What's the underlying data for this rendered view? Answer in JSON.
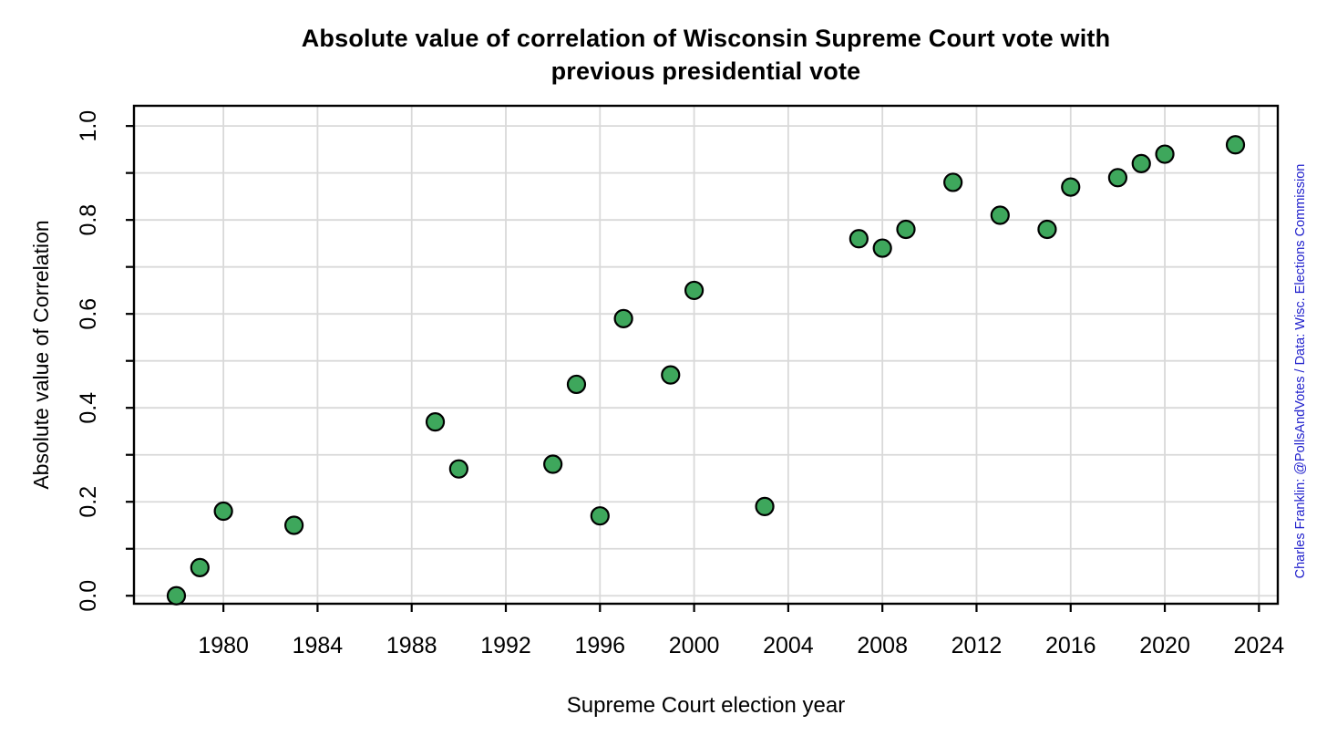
{
  "header": {
    "title_line1": "Absolute value of correlation of Wisconsin Supreme Court vote with",
    "title_line2": "previous presidential vote"
  },
  "chart_data": {
    "type": "scatter",
    "title": "Absolute value of correlation of Wisconsin Supreme Court vote with previous presidential vote",
    "xlabel": "Supreme Court election year",
    "ylabel": "Absolute value of Correlation",
    "credit": "Charles Franklin: @PollsAndVotes / Data: Wisc. Elections Commission",
    "grid": true,
    "legend_position": "none",
    "xlim": [
      1976.2,
      2024.8
    ],
    "ylim": [
      -0.017,
      1.043
    ],
    "x_ticks": [
      1980,
      1984,
      1988,
      1992,
      1996,
      2000,
      2004,
      2008,
      2012,
      2016,
      2020,
      2024
    ],
    "y_gridlines": [
      0.0,
      0.1,
      0.2,
      0.3,
      0.4,
      0.5,
      0.6,
      0.7,
      0.8,
      0.9,
      1.0
    ],
    "y_ticks_labeled": [
      {
        "value": 0.0,
        "label": "0.0"
      },
      {
        "value": 0.2,
        "label": "0.2"
      },
      {
        "value": 0.4,
        "label": "0.4"
      },
      {
        "value": 0.6,
        "label": "0.6"
      },
      {
        "value": 0.8,
        "label": "0.8"
      },
      {
        "value": 1.0,
        "label": "1.0"
      }
    ],
    "points": [
      {
        "year": 1978,
        "value": 0.0
      },
      {
        "year": 1979,
        "value": 0.06
      },
      {
        "year": 1980,
        "value": 0.18
      },
      {
        "year": 1983,
        "value": 0.15
      },
      {
        "year": 1989,
        "value": 0.37
      },
      {
        "year": 1990,
        "value": 0.27
      },
      {
        "year": 1994,
        "value": 0.28
      },
      {
        "year": 1995,
        "value": 0.45
      },
      {
        "year": 1996,
        "value": 0.17
      },
      {
        "year": 1997,
        "value": 0.59
      },
      {
        "year": 1999,
        "value": 0.47
      },
      {
        "year": 2000,
        "value": 0.65
      },
      {
        "year": 2003,
        "value": 0.19
      },
      {
        "year": 2007,
        "value": 0.76
      },
      {
        "year": 2008,
        "value": 0.74
      },
      {
        "year": 2009,
        "value": 0.78
      },
      {
        "year": 2011,
        "value": 0.88
      },
      {
        "year": 2013,
        "value": 0.81
      },
      {
        "year": 2015,
        "value": 0.78
      },
      {
        "year": 2016,
        "value": 0.87
      },
      {
        "year": 2018,
        "value": 0.89
      },
      {
        "year": 2019,
        "value": 0.92
      },
      {
        "year": 2020,
        "value": 0.94
      },
      {
        "year": 2023,
        "value": 0.96
      }
    ],
    "colors": {
      "point_fill": "#3EA75C",
      "point_stroke": "#000000",
      "grid": "#D9D9D9",
      "axis": "#000000",
      "credit_text": "#2222CC"
    }
  }
}
